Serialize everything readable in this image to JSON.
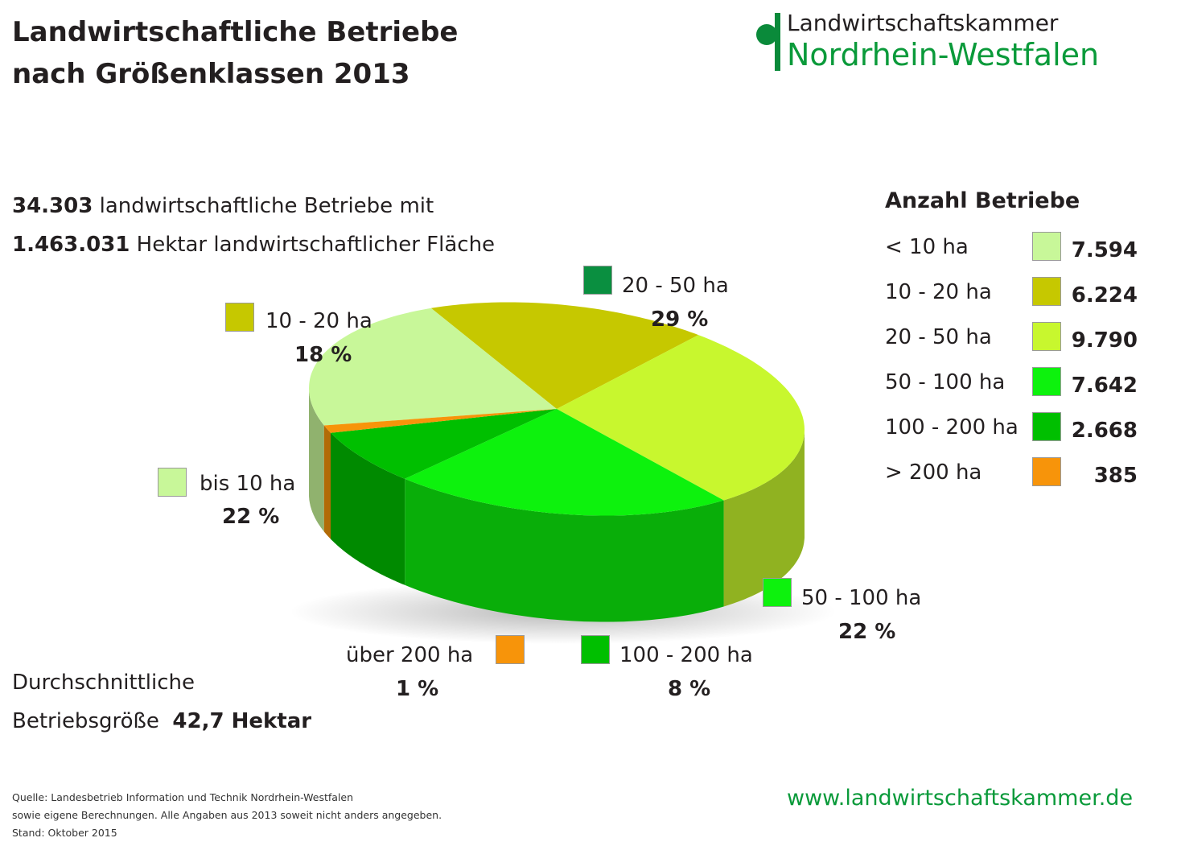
{
  "title_line1": "Landwirtschaftliche Betriebe",
  "title_line2": "nach Größenklassen 2013",
  "logo": {
    "line1": "Landwirtschaftskammer",
    "line2": "Nordrhein-Westfalen"
  },
  "summary": {
    "count": "34.303",
    "count_text": " landwirtschaftliche Betriebe mit",
    "area": "1.463.031",
    "area_text": " Hektar landwirtschaftlicher Fläche"
  },
  "average": {
    "line1": "Durchschnittliche",
    "line2": "Betriebsgröße",
    "value": "42,7 Hektar"
  },
  "legend": {
    "title": "Anzahl Betriebe",
    "rows": [
      {
        "label": "<  10 ha",
        "value": "7.594"
      },
      {
        "label": "10 - 20 ha",
        "value": "6.224"
      },
      {
        "label": "20 - 50 ha",
        "value": "9.790"
      },
      {
        "label": "50 - 100 ha",
        "value": "7.642"
      },
      {
        "label": "100 - 200 ha",
        "value": "2.668"
      },
      {
        "label": "> 200 ha",
        "value": "385"
      }
    ]
  },
  "callouts": {
    "c0": {
      "label": "bis 10 ha",
      "pct": "22 %"
    },
    "c1": {
      "label": "10 - 20 ha",
      "pct": "18 %"
    },
    "c2": {
      "label": "20 - 50 ha",
      "pct": "29 %"
    },
    "c3": {
      "label": "50 - 100 ha",
      "pct": "22 %"
    },
    "c4": {
      "label": "100 - 200 ha",
      "pct": "8 %"
    },
    "c5": {
      "label": "über 200 ha",
      "pct": "1 %"
    }
  },
  "colors": {
    "lt10": "#c8f799",
    "10_20": "#c6c800",
    "20_50": "#c8f72e",
    "50_100": "#0df20d",
    "100_200": "#00bf00",
    "gt200": "#f7940a",
    "callout_20_50": "#0a8f40",
    "brand_green": "#0a9a3a"
  },
  "chart_data": {
    "type": "pie",
    "categories": [
      "< 10 ha",
      "10 - 20 ha",
      "20 - 50 ha",
      "50 - 100 ha",
      "100 - 200 ha",
      "> 200 ha"
    ],
    "values": [
      7594,
      6224,
      9790,
      7642,
      2668,
      385
    ],
    "percentages": [
      22,
      18,
      29,
      22,
      8,
      1
    ],
    "legend_title": "Anzahl Betriebe",
    "legend_position": "right"
  },
  "footer": {
    "line1": "Quelle: Landesbetrieb Information und Technik Nordrhein-Westfalen",
    "line2": "sowie eigene Berechnungen. Alle Angaben aus 2013 soweit nicht anders angegeben.",
    "line3": "Stand: Oktober 2015"
  },
  "url": "www.landwirtschaftskammer.de"
}
